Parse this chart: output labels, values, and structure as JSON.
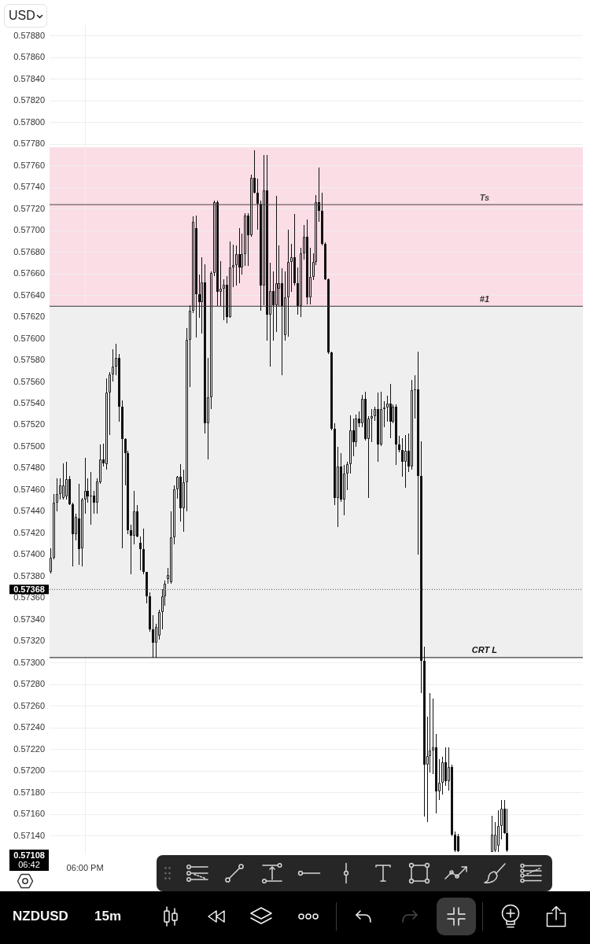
{
  "chart_data": {
    "type": "candlestick",
    "title": "NZDUSD",
    "subtitle": "15m",
    "ylabel": "USD",
    "color": "#111111",
    "categories": [
      null,
      null,
      null,
      null,
      null,
      null,
      null,
      null,
      null,
      null,
      null,
      "06:00 PM",
      null,
      null,
      null,
      null,
      null,
      null,
      null,
      null,
      null,
      null,
      null,
      null,
      null,
      null,
      null,
      null,
      null,
      null,
      null,
      null,
      null,
      null,
      null,
      null,
      null,
      null,
      null,
      null,
      null,
      null,
      null,
      null,
      null,
      null,
      null,
      null,
      null,
      null,
      null,
      null,
      null,
      null,
      null,
      null,
      null,
      null,
      null,
      null,
      null,
      null,
      null,
      null,
      null,
      null,
      null,
      null,
      null,
      null,
      null,
      null,
      null,
      null,
      null,
      null,
      null,
      null,
      null,
      null,
      null,
      null,
      null,
      null,
      null,
      null,
      null,
      null,
      null,
      null,
      null,
      null,
      null,
      null,
      null,
      null,
      null,
      null,
      null,
      null,
      null,
      null,
      null,
      null,
      null,
      null,
      null,
      null,
      null,
      null,
      null,
      null,
      null,
      null,
      null,
      null,
      null,
      null,
      null,
      null,
      null,
      null,
      null,
      null,
      null,
      null,
      null,
      null,
      null,
      null,
      null,
      null,
      null,
      null,
      null,
      null,
      null,
      null,
      null,
      null,
      null,
      null,
      null,
      null,
      null,
      null,
      null,
      null,
      null,
      null,
      null,
      null,
      null,
      null,
      null,
      null,
      null,
      null,
      null,
      null,
      null,
      null,
      null,
      null,
      null,
      null,
      null,
      null,
      null,
      null,
      null,
      null,
      null
    ],
    "ohlc": [
      [
        0.57384,
        0.57406,
        0.57383,
        0.57397
      ],
      [
        0.57397,
        0.57456,
        0.57396,
        0.57448
      ],
      [
        0.57448,
        0.57471,
        0.5744,
        0.57456
      ],
      [
        0.57456,
        0.57471,
        0.57451,
        0.57464
      ],
      [
        0.57453,
        0.57485,
        0.57451,
        0.57464
      ],
      [
        0.57454,
        0.57486,
        0.57451,
        0.5747
      ],
      [
        0.5747,
        0.57473,
        0.57446,
        0.57447
      ],
      [
        0.57447,
        0.57448,
        0.57389,
        0.57419
      ],
      [
        0.57419,
        0.57438,
        0.57413,
        0.57435
      ],
      [
        0.57434,
        0.57466,
        0.57391,
        0.57405
      ],
      [
        0.57406,
        0.57453,
        0.57389,
        0.57451
      ],
      [
        0.57451,
        0.5749,
        0.57438,
        0.57459
      ],
      [
        0.57459,
        0.57471,
        0.57448,
        0.57454
      ],
      [
        0.57454,
        0.57477,
        0.57428,
        0.57455
      ],
      [
        0.57455,
        0.57459,
        0.57438,
        0.57448
      ],
      [
        0.57448,
        0.57471,
        0.57438,
        0.57468
      ],
      [
        0.57467,
        0.57502,
        0.57466,
        0.57488
      ],
      [
        0.57488,
        0.57503,
        0.57482,
        0.57485
      ],
      [
        0.57484,
        0.57563,
        0.57479,
        0.5755
      ],
      [
        0.5755,
        0.57569,
        0.57511,
        0.57567
      ],
      [
        0.57567,
        0.5759,
        0.5756,
        0.57574
      ],
      [
        0.57574,
        0.57595,
        0.57566,
        0.57582
      ],
      [
        0.57582,
        0.57586,
        0.57523,
        0.57537
      ],
      [
        0.57537,
        0.57543,
        0.57406,
        0.57507
      ],
      [
        0.57507,
        0.57508,
        0.57464,
        0.57494
      ],
      [
        0.57494,
        0.57496,
        0.57419,
        0.57423
      ],
      [
        0.57423,
        0.57428,
        0.57382,
        0.57418
      ],
      [
        0.57418,
        0.57459,
        0.5741,
        0.5744
      ],
      [
        0.5744,
        0.57446,
        0.57416,
        0.57417
      ],
      [
        0.57411,
        0.57417,
        0.57386,
        0.57405
      ],
      [
        0.57405,
        0.57424,
        0.57382,
        0.57384
      ],
      [
        0.57384,
        0.57384,
        0.57355,
        0.57362
      ],
      [
        0.57362,
        0.57365,
        0.57329,
        0.57331
      ],
      [
        0.57331,
        0.57344,
        0.57305,
        0.57319
      ],
      [
        0.57319,
        0.57336,
        0.57305,
        0.57333
      ],
      [
        0.57325,
        0.57349,
        0.57322,
        0.57347
      ],
      [
        0.57347,
        0.57368,
        0.57331,
        0.57362
      ],
      [
        0.57362,
        0.57376,
        0.57353,
        0.57373
      ],
      [
        0.57378,
        0.57388,
        0.57373,
        0.57381
      ],
      [
        0.57375,
        0.5744,
        0.57373,
        0.57416
      ],
      [
        0.57416,
        0.57464,
        0.5741,
        0.57461
      ],
      [
        0.57461,
        0.57473,
        0.57452,
        0.57472
      ],
      [
        0.57472,
        0.57484,
        0.57431,
        0.57443
      ],
      [
        0.57443,
        0.57479,
        0.57421,
        0.57467
      ],
      [
        0.57467,
        0.5761,
        0.5744,
        0.57599
      ],
      [
        0.57599,
        0.57631,
        0.57555,
        0.57626
      ],
      [
        0.57626,
        0.57713,
        0.57624,
        0.57708
      ],
      [
        0.57702,
        0.57714,
        0.57601,
        0.57641
      ],
      [
        0.57641,
        0.57659,
        0.57619,
        0.57634
      ],
      [
        0.57634,
        0.57675,
        0.57605,
        0.57652
      ],
      [
        0.57652,
        0.57669,
        0.57512,
        0.57522
      ],
      [
        0.57522,
        0.57582,
        0.57488,
        0.57546
      ],
      [
        0.57546,
        0.57662,
        0.57535,
        0.57661
      ],
      [
        0.57661,
        0.57728,
        0.57658,
        0.57726
      ],
      [
        0.57726,
        0.57728,
        0.5763,
        0.57643
      ],
      [
        0.57643,
        0.57672,
        0.5763,
        0.57646
      ],
      [
        0.57646,
        0.57655,
        0.57617,
        0.5765
      ],
      [
        0.5765,
        0.57658,
        0.57614,
        0.5762
      ],
      [
        0.5762,
        0.5769,
        0.57619,
        0.57666
      ],
      [
        0.57666,
        0.57687,
        0.57648,
        0.57668
      ],
      [
        0.57668,
        0.57686,
        0.57649,
        0.57678
      ],
      [
        0.57678,
        0.57702,
        0.57651,
        0.57666
      ],
      [
        0.57666,
        0.57697,
        0.57659,
        0.57678
      ],
      [
        0.57678,
        0.57716,
        0.57667,
        0.57714
      ],
      [
        0.57714,
        0.57716,
        0.57667,
        0.57696
      ],
      [
        0.57696,
        0.57752,
        0.57694,
        0.57749
      ],
      [
        0.57749,
        0.57774,
        0.57734,
        0.57735
      ],
      [
        0.57735,
        0.57748,
        0.57701,
        0.57725
      ],
      [
        0.57725,
        0.57728,
        0.57626,
        0.57649
      ],
      [
        0.57649,
        0.5777,
        0.57631,
        0.57737
      ],
      [
        0.57737,
        0.5777,
        0.57598,
        0.57622
      ],
      [
        0.57622,
        0.5767,
        0.57574,
        0.57644
      ],
      [
        0.57644,
        0.57662,
        0.57598,
        0.57631
      ],
      [
        0.57631,
        0.57732,
        0.57606,
        0.57651
      ],
      [
        0.57646,
        0.57686,
        0.5763,
        0.57651
      ],
      [
        0.57651,
        0.57665,
        0.57566,
        0.5763
      ],
      [
        0.57603,
        0.57662,
        0.57598,
        0.57638
      ],
      [
        0.57638,
        0.57701,
        0.57602,
        0.57671
      ],
      [
        0.57671,
        0.57688,
        0.57643,
        0.57675
      ],
      [
        0.57675,
        0.57715,
        0.57649,
        0.57651
      ],
      [
        0.57651,
        0.57666,
        0.57622,
        0.5763
      ],
      [
        0.5763,
        0.57684,
        0.5762,
        0.57679
      ],
      [
        0.57679,
        0.57705,
        0.57673,
        0.57694
      ],
      [
        0.57694,
        0.5771,
        0.57632,
        0.57638
      ],
      [
        0.57638,
        0.57684,
        0.57632,
        0.57657
      ],
      [
        0.57657,
        0.57679,
        0.57654,
        0.57671
      ],
      [
        0.57671,
        0.57733,
        0.57668,
        0.57726
      ],
      [
        0.57726,
        0.57758,
        0.57708,
        0.57718
      ],
      [
        0.57718,
        0.57735,
        0.57686,
        0.57688
      ],
      [
        0.57688,
        0.57689,
        0.57654,
        0.57655
      ],
      [
        0.57655,
        0.57656,
        0.57586,
        0.57587
      ],
      [
        0.57587,
        0.57588,
        0.57515,
        0.57517
      ],
      [
        0.57517,
        0.57522,
        0.57446,
        0.57453
      ],
      [
        0.57453,
        0.575,
        0.57426,
        0.57482
      ],
      [
        0.57482,
        0.57494,
        0.57449,
        0.57451
      ],
      [
        0.57451,
        0.57483,
        0.57437,
        0.57475
      ],
      [
        0.57475,
        0.57486,
        0.5746,
        0.57484
      ],
      [
        0.57484,
        0.57529,
        0.57475,
        0.57515
      ],
      [
        0.57515,
        0.57526,
        0.57491,
        0.57504
      ],
      [
        0.57504,
        0.5753,
        0.575,
        0.57526
      ],
      [
        0.57526,
        0.57533,
        0.57518,
        0.57522
      ],
      [
        0.57522,
        0.57548,
        0.57518,
        0.57544
      ],
      [
        0.57544,
        0.57551,
        0.57506,
        0.57507
      ],
      [
        0.57507,
        0.57528,
        0.57453,
        0.57526
      ],
      [
        0.57526,
        0.57535,
        0.57504,
        0.57528
      ],
      [
        0.57528,
        0.57537,
        0.57524,
        0.57535
      ],
      [
        0.57535,
        0.5755,
        0.57486,
        0.57502
      ],
      [
        0.57502,
        0.57551,
        0.57501,
        0.57535
      ],
      [
        0.57535,
        0.57542,
        0.57518,
        0.57536
      ],
      [
        0.57536,
        0.57547,
        0.57523,
        0.5754
      ],
      [
        0.5754,
        0.57558,
        0.57508,
        0.57523
      ],
      [
        0.57523,
        0.57539,
        0.57522,
        0.57537
      ],
      [
        0.57537,
        0.57539,
        0.57483,
        0.57502
      ],
      [
        0.57502,
        0.5751,
        0.57495,
        0.57497
      ],
      [
        0.57497,
        0.57508,
        0.57472,
        0.57486
      ],
      [
        0.57486,
        0.57511,
        0.57462,
        0.57496
      ],
      [
        0.57496,
        0.57512,
        0.57477,
        0.57482
      ],
      [
        0.57482,
        0.57562,
        0.57479,
        0.57552
      ],
      [
        0.57552,
        0.57566,
        0.57526,
        0.57553
      ],
      [
        0.57553,
        0.57588,
        0.574,
        0.57473
      ],
      [
        0.57473,
        0.57505,
        0.57272,
        0.57302
      ],
      [
        0.57302,
        0.57315,
        0.57158,
        0.57206
      ],
      [
        0.57206,
        0.5725,
        0.57153,
        0.57214
      ],
      [
        0.57214,
        0.57272,
        0.57199,
        0.57219
      ],
      [
        0.57219,
        0.57267,
        0.57197,
        0.57222
      ],
      [
        0.57222,
        0.57234,
        0.57161,
        0.57181
      ],
      [
        0.57181,
        0.57211,
        0.57173,
        0.57189
      ],
      [
        0.57189,
        0.57213,
        0.57178,
        0.57208
      ],
      [
        0.57208,
        0.57222,
        0.57186,
        0.57191
      ],
      [
        0.57191,
        0.57222,
        0.57182,
        0.57204
      ],
      [
        0.57204,
        0.57206,
        0.5714,
        0.57141
      ],
      [
        0.57141,
        0.57144,
        0.57125,
        0.57127
      ],
      [
        0.5714,
        0.57142,
        0.57125,
        0.57126
      ],
      null,
      null,
      null,
      null,
      null,
      null,
      null,
      null,
      null,
      null,
      [
        0.57125,
        0.57159,
        0.57125,
        0.57141
      ],
      [
        0.57127,
        0.57153,
        0.57125,
        0.57141
      ],
      [
        0.57131,
        0.57164,
        0.57125,
        0.57149
      ],
      [
        0.57149,
        0.57173,
        0.57137,
        0.57165
      ],
      [
        0.57165,
        0.57173,
        0.57142,
        0.57143
      ],
      [
        0.57143,
        0.57165,
        0.57125,
        0.57127
      ],
      null,
      null,
      null,
      null,
      null,
      null,
      null,
      null,
      null,
      null,
      null,
      null,
      null,
      null,
      null,
      null,
      null,
      null,
      null,
      null,
      null,
      null,
      null,
      null
    ],
    "ylim": [
      0.57123,
      0.5789
    ],
    "yticks": [
      {
        "value": 0.5714,
        "label": "0.57140"
      },
      {
        "value": 0.5716,
        "label": "0.57160"
      },
      {
        "value": 0.5718,
        "label": "0.57180"
      },
      {
        "value": 0.572,
        "label": "0.57200"
      },
      {
        "value": 0.5722,
        "label": "0.57220"
      },
      {
        "value": 0.5724,
        "label": "0.57240"
      },
      {
        "value": 0.5726,
        "label": "0.57260"
      },
      {
        "value": 0.5728,
        "label": "0.57280"
      },
      {
        "value": 0.573,
        "label": "0.57300"
      },
      {
        "value": 0.5732,
        "label": "0.57320"
      },
      {
        "value": 0.5734,
        "label": "0.57340"
      },
      {
        "value": 0.5736,
        "label": "0.57360"
      },
      {
        "value": 0.5738,
        "label": "0.57380"
      },
      {
        "value": 0.574,
        "label": "0.57400"
      },
      {
        "value": 0.5742,
        "label": "0.57420"
      },
      {
        "value": 0.5744,
        "label": "0.57440"
      },
      {
        "value": 0.5746,
        "label": "0.57460"
      },
      {
        "value": 0.5748,
        "label": "0.57480"
      },
      {
        "value": 0.575,
        "label": "0.57500"
      },
      {
        "value": 0.5752,
        "label": "0.57520"
      },
      {
        "value": 0.5754,
        "label": "0.57540"
      },
      {
        "value": 0.5756,
        "label": "0.57560"
      },
      {
        "value": 0.5758,
        "label": "0.57580"
      },
      {
        "value": 0.576,
        "label": "0.57600"
      },
      {
        "value": 0.5762,
        "label": "0.57620"
      },
      {
        "value": 0.5764,
        "label": "0.57640"
      },
      {
        "value": 0.5766,
        "label": "0.57660"
      },
      {
        "value": 0.5768,
        "label": "0.57680"
      },
      {
        "value": 0.577,
        "label": "0.57700"
      },
      {
        "value": 0.5772,
        "label": "0.57720"
      },
      {
        "value": 0.5774,
        "label": "0.57740"
      },
      {
        "value": 0.5776,
        "label": "0.57760"
      },
      {
        "value": 0.5778,
        "label": "0.57780"
      },
      {
        "value": 0.578,
        "label": "0.57800"
      },
      {
        "value": 0.5782,
        "label": "0.57820"
      },
      {
        "value": 0.5784,
        "label": "0.57840"
      },
      {
        "value": 0.5786,
        "label": "0.57860"
      },
      {
        "value": 0.5788,
        "label": "0.57880"
      }
    ],
    "grid": true,
    "bands": [
      {
        "axis": "y",
        "from": 0.5763,
        "to": 0.57777,
        "color": "#fbdde6"
      },
      {
        "axis": "y",
        "from": 0.57305,
        "to": 0.5763,
        "color": "#efefef"
      }
    ],
    "ref_lines": [
      {
        "axis": "y",
        "value": 0.57724,
        "label": "Ts",
        "color": "#444444"
      },
      {
        "axis": "y",
        "value": 0.5763,
        "label": "#1",
        "color": "#333333"
      },
      {
        "axis": "y",
        "value": 0.57305,
        "label": "CRT L",
        "color": "#111111"
      },
      {
        "axis": "y",
        "value": 0.57368,
        "label": "0.57368",
        "color": "#555555",
        "line_style": "dotted"
      }
    ],
    "annotations": [
      "0.57108",
      "06:42"
    ]
  }
}
